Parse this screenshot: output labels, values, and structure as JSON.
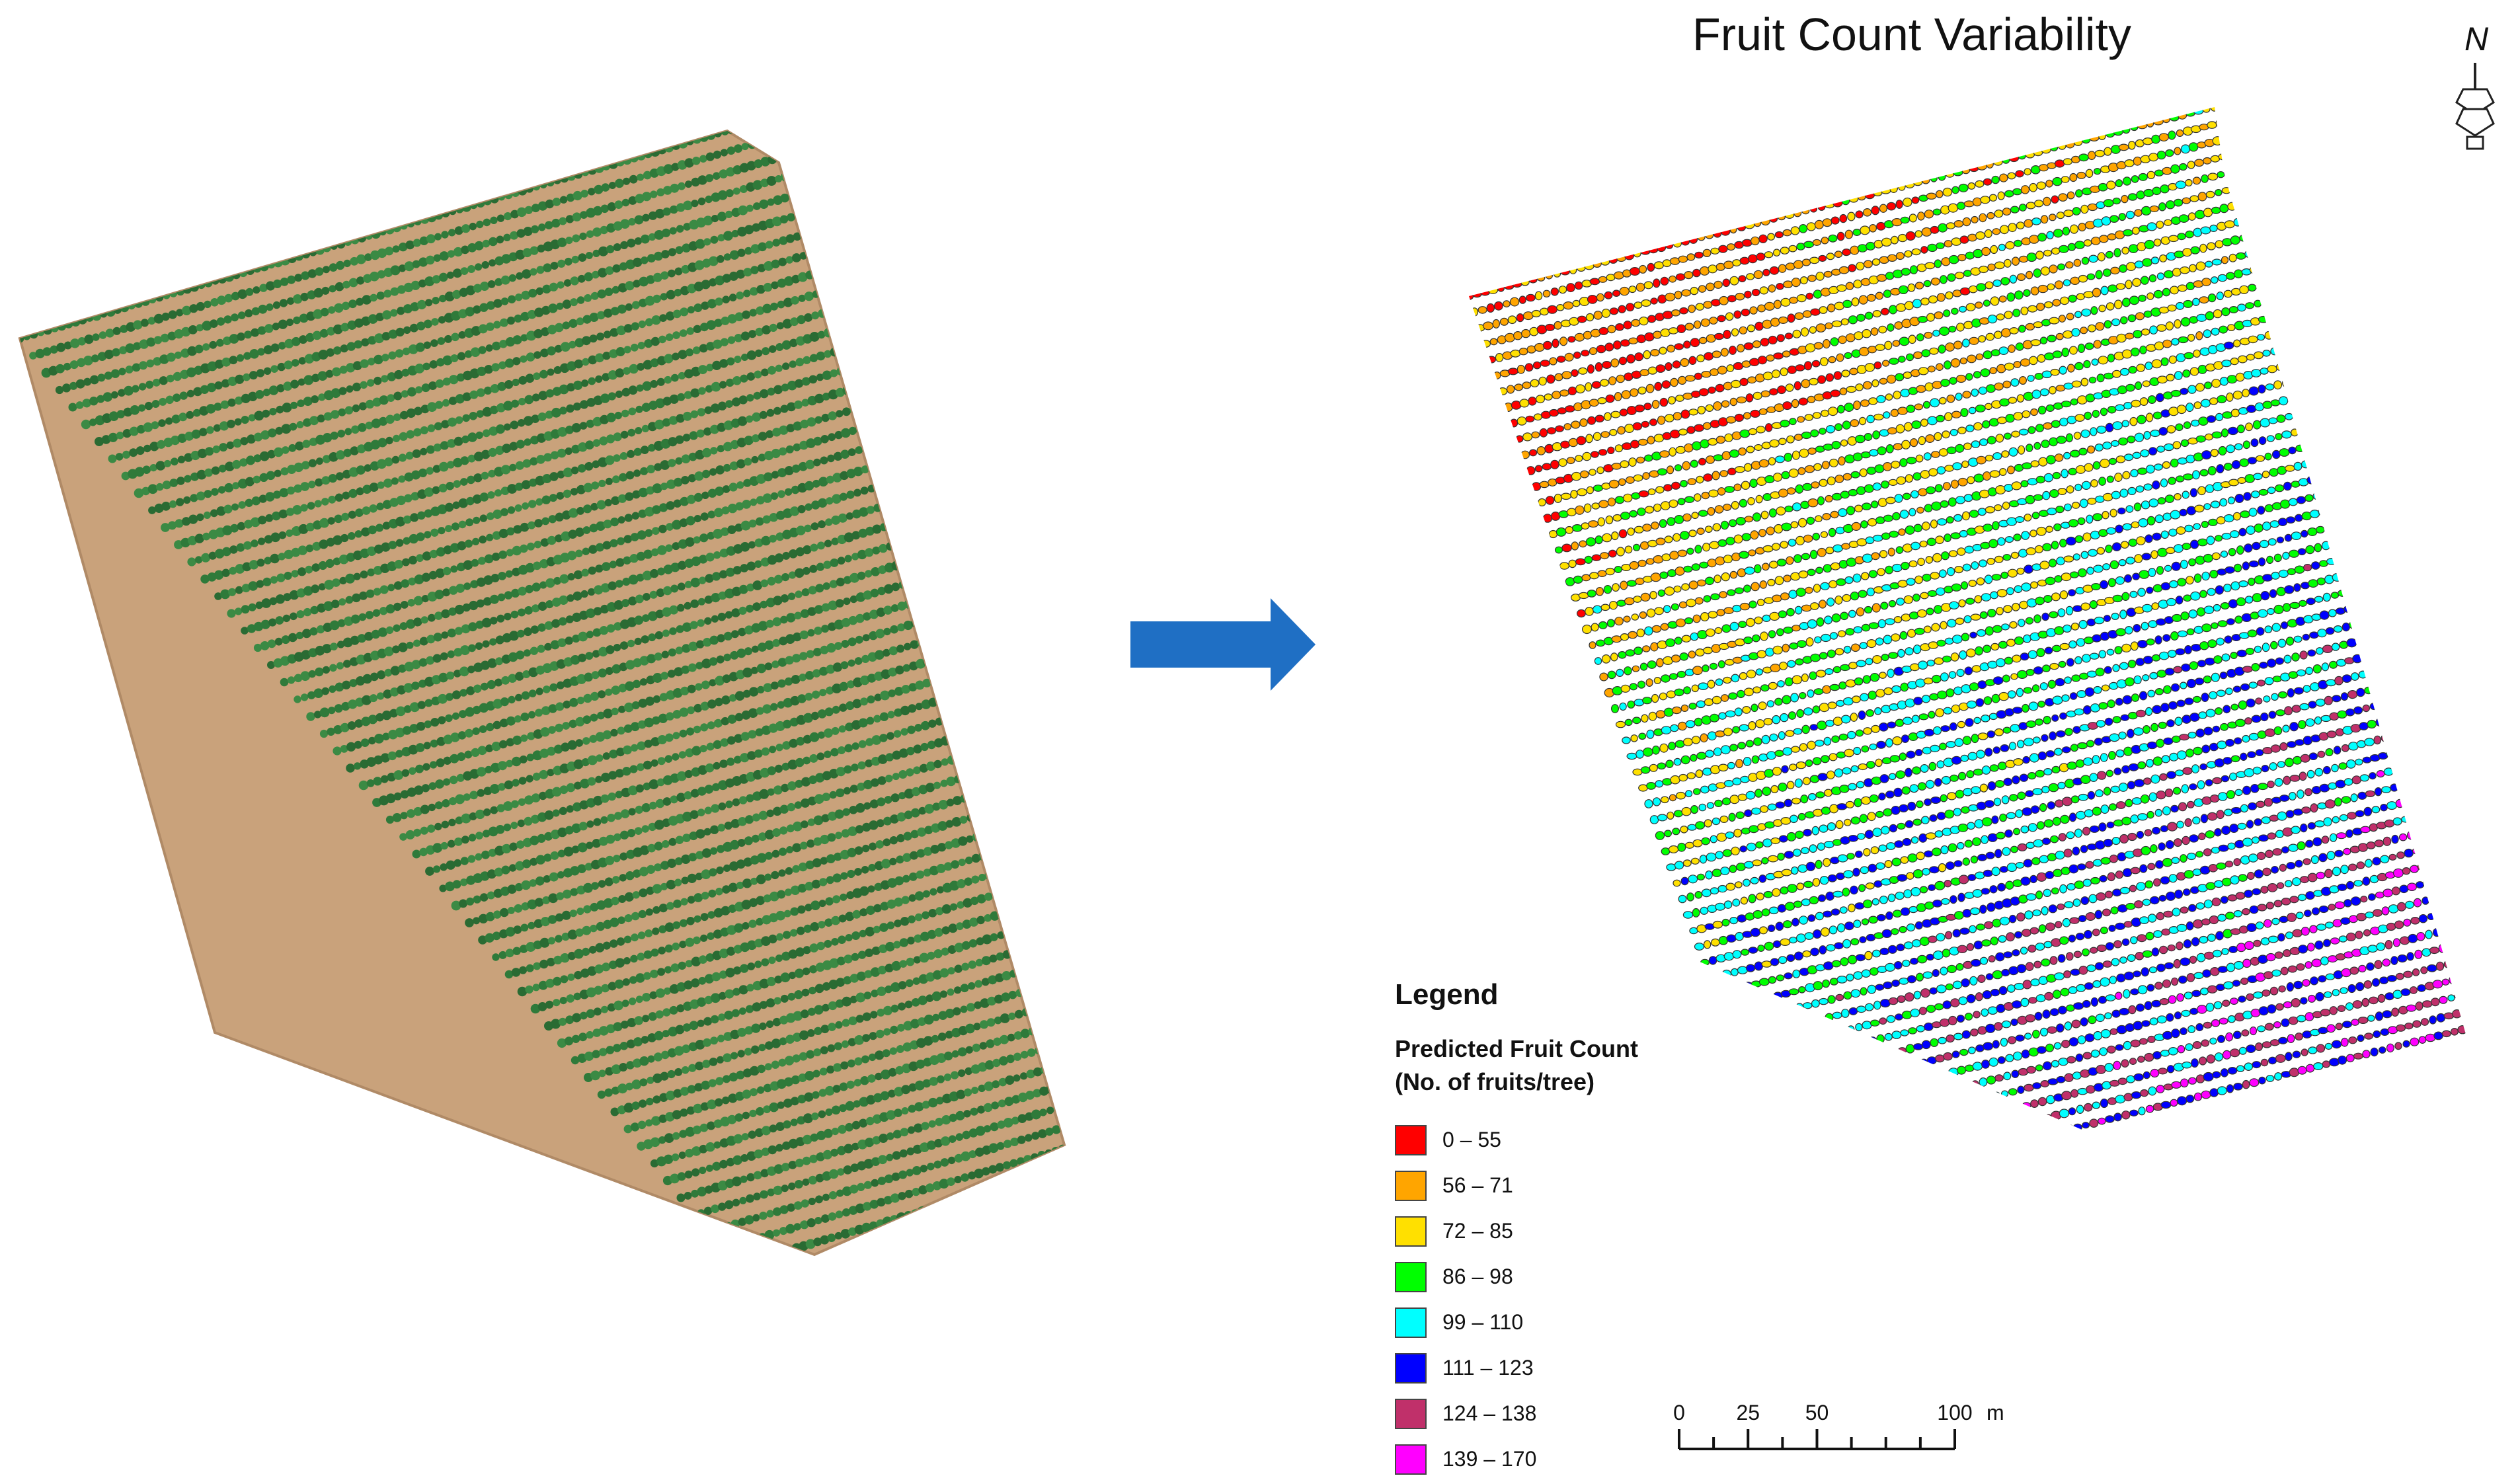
{
  "title": "Fruit Count Variability",
  "north_arrow": {
    "label": "N",
    "icon": "north-arrow-icon"
  },
  "arrow_icon": "right-arrow-icon",
  "legend": {
    "title": "Legend",
    "subtitle_line1": "Predicted Fruit Count",
    "subtitle_line2": "(No. of fruits/tree)",
    "classes": [
      {
        "label": "0 – 55",
        "color": "#ff0000"
      },
      {
        "label": "56 – 71",
        "color": "#ffa500"
      },
      {
        "label": "72 – 85",
        "color": "#ffe000"
      },
      {
        "label": "86 – 98",
        "color": "#00ff00"
      },
      {
        "label": "99 – 110",
        "color": "#00ffff"
      },
      {
        "label": "111 – 123",
        "color": "#0000ff"
      },
      {
        "label": "124 – 138",
        "color": "#c0306a"
      },
      {
        "label": "139 – 170",
        "color": "#ff00ff"
      }
    ]
  },
  "scale_bar": {
    "ticks": [
      {
        "value": 0,
        "label": "0"
      },
      {
        "value": 25,
        "label": "25"
      },
      {
        "value": 50,
        "label": "50"
      },
      {
        "value": 100,
        "label": "100"
      }
    ],
    "unit": "m"
  },
  "colors": {
    "orchard_soil": "#c9a27b",
    "tree_canopy": "#2f7a3a",
    "arrow": "#1f6fc4"
  }
}
